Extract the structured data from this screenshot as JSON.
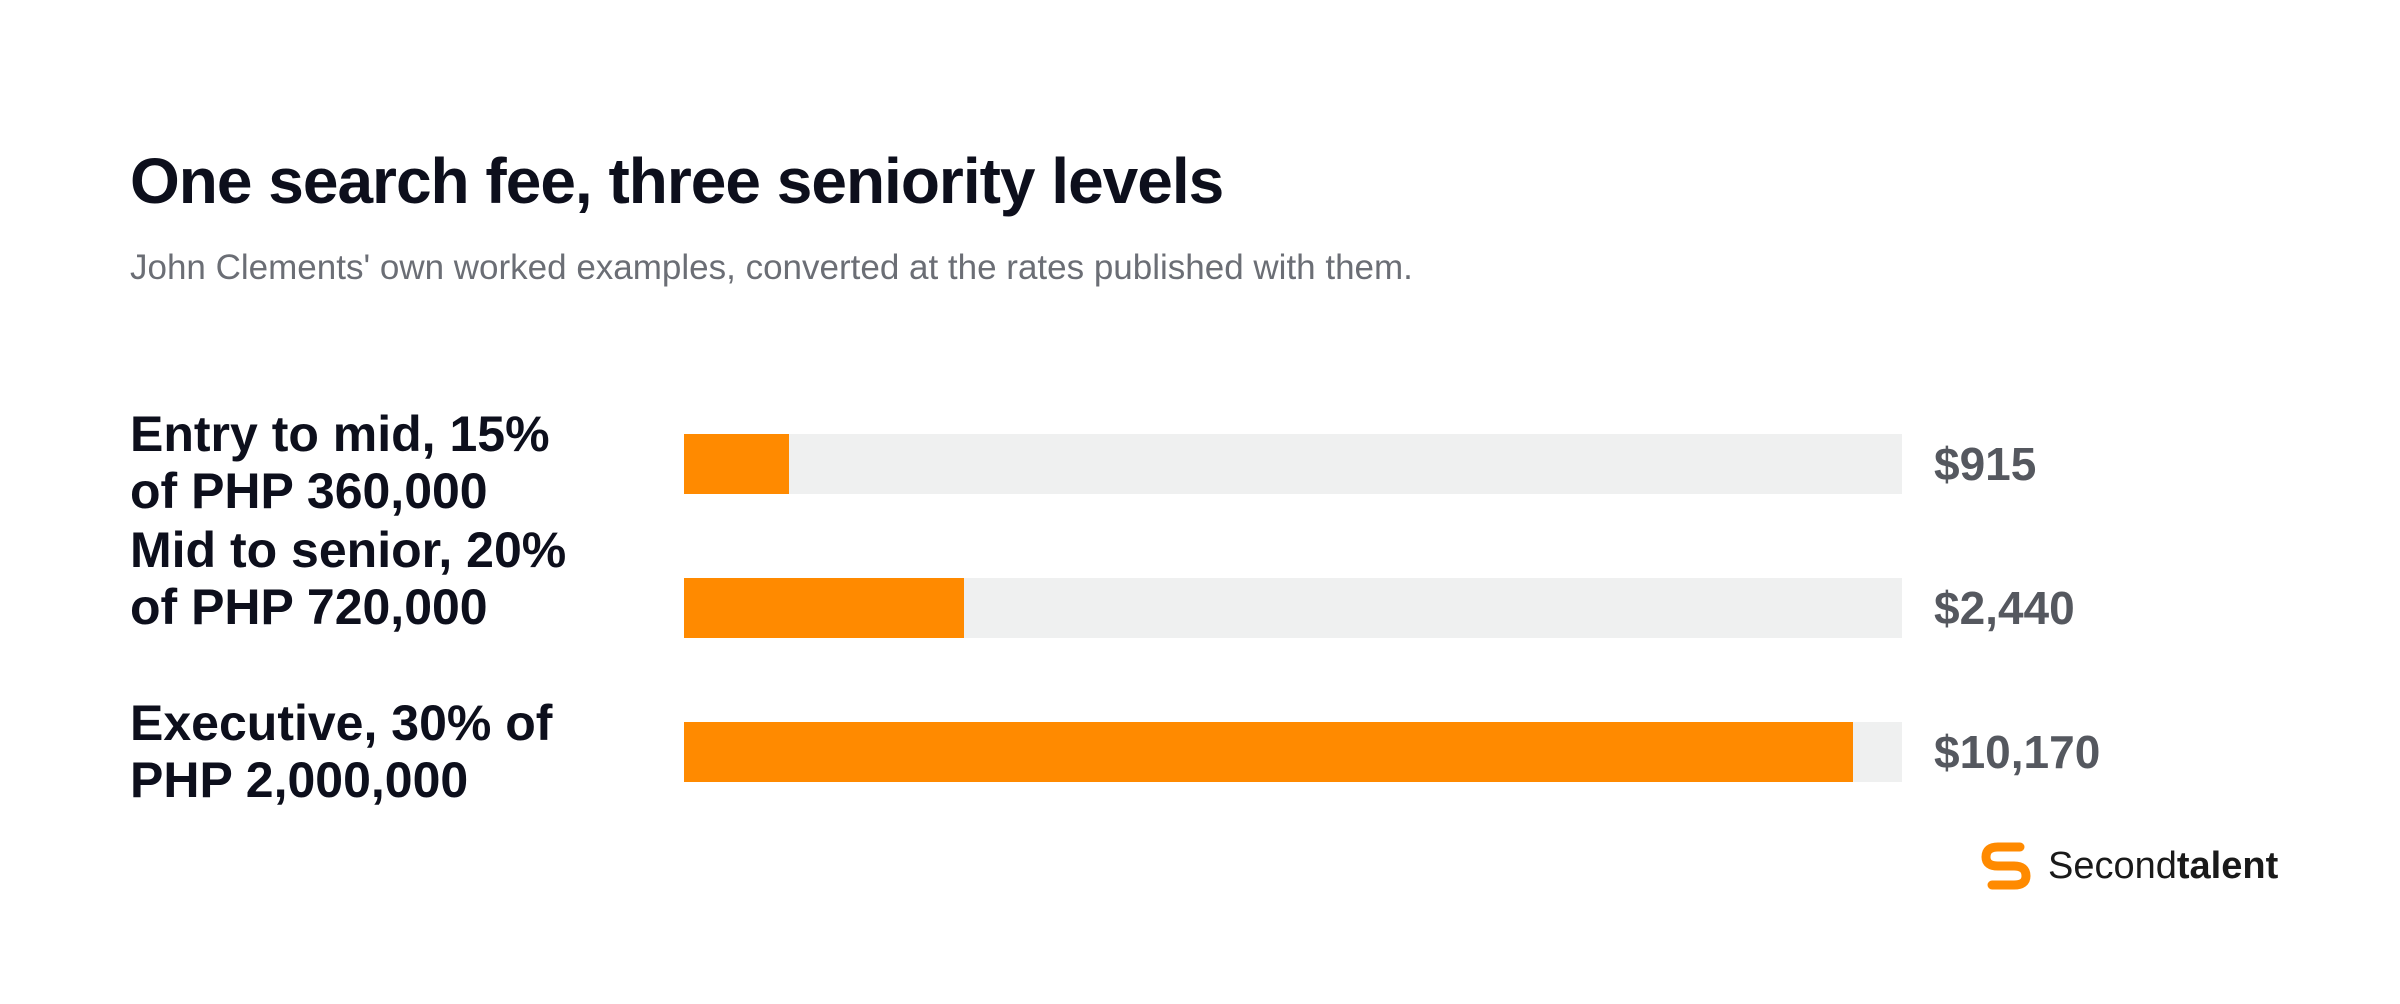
{
  "chart_data": {
    "type": "bar",
    "orientation": "horizontal",
    "title": "One search fee, three seniority levels",
    "subtitle": "John Clements' own worked examples, converted at the rates published with them.",
    "categories": [
      "Entry to mid, 15% of PHP 360,000",
      "Mid to senior, 20% of PHP 720,000",
      "Executive, 30% of PHP 2,000,000"
    ],
    "values": [
      915,
      2440,
      10170
    ],
    "value_labels": [
      "$915",
      "$2,440",
      "$10,170"
    ],
    "xlim": [
      0,
      10600
    ],
    "colors": {
      "bar": "#ff8a00",
      "track": "#eff0f0"
    }
  },
  "brand": {
    "name_regular": "Second",
    "name_bold": "talent",
    "icon": "secondtalent-logo-icon",
    "color": "#ff8a00"
  }
}
